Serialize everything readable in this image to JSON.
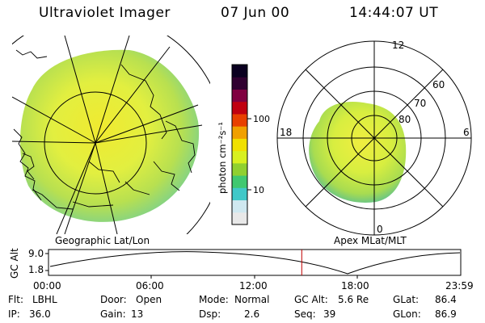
{
  "header": {
    "instrument": "Ultraviolet Imager",
    "date": "07 Jun 00",
    "time": "14:44:07 UT"
  },
  "geo_panel": {
    "label": "Geographic Lat/Lon"
  },
  "mag_panel": {
    "label": "Apex MLat/MLT",
    "lat_labels": [
      "80",
      "70",
      "60"
    ],
    "mlt_labels": {
      "top": "12",
      "left": "18",
      "right": "6",
      "bottom": "0"
    }
  },
  "colorbar": {
    "unit_label": "photon cm⁻²s⁻¹",
    "ticks": [
      "100",
      "10"
    ],
    "colors": [
      "#e8e8e8",
      "#cfe8f0",
      "#40c8c8",
      "#40c870",
      "#90d030",
      "#d8f020",
      "#f0e000",
      "#f0a000",
      "#e84000",
      "#c00010",
      "#800040",
      "#300030",
      "#0a0020"
    ]
  },
  "timeline": {
    "ylabel": "GC Alt",
    "y_ticks": [
      "9.0",
      "1.8"
    ],
    "x_ticks": [
      "00:00",
      "06:00",
      "12:00",
      "18:00",
      "23:59"
    ],
    "current_time": "14:44",
    "marker_color": "#c00000"
  },
  "info": {
    "flt_label": "Flt:",
    "flt_value": "LBHL",
    "ip_label": "IP:",
    "ip_value": "36.0",
    "door_label": "Door:",
    "door_value": "Open",
    "gain_label": "Gain:",
    "gain_value": "13",
    "mode_label": "Mode:",
    "mode_value": "Normal",
    "dsp_label": "Dsp:",
    "dsp_value": "2.6",
    "gcalt_label": "GC Alt:",
    "gcalt_value": "5.6 Re",
    "seq_label": "Seq:",
    "seq_value": "39",
    "glat_label": "GLat:",
    "glat_value": "86.4",
    "glon_label": "GLon:",
    "glon_value": "86.9"
  }
}
